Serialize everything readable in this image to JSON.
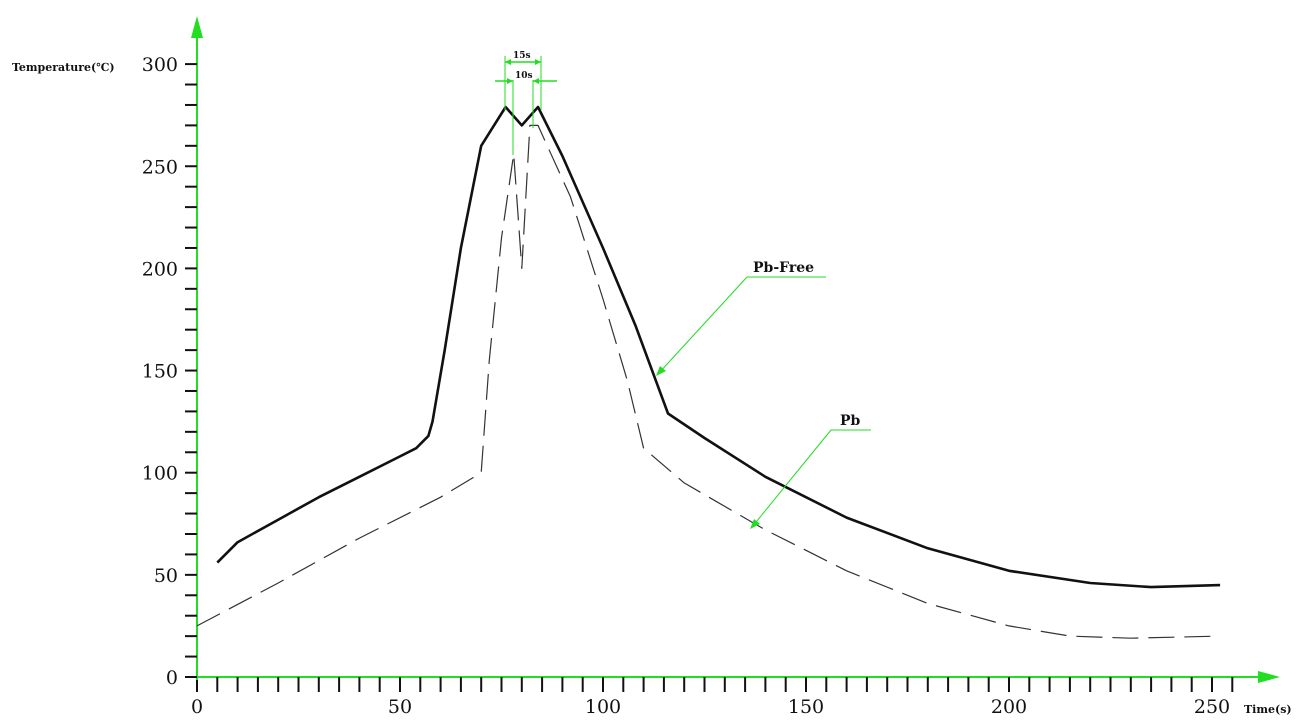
{
  "chart_data": {
    "type": "line",
    "title": "",
    "xlabel": "Time(s)",
    "ylabel": "Temperature(℃)",
    "xlim": [
      0,
      260
    ],
    "ylim": [
      0,
      300
    ],
    "x_ticks": [
      0,
      50,
      100,
      150,
      200,
      250
    ],
    "y_ticks": [
      0,
      50,
      100,
      150,
      200,
      250,
      300
    ],
    "grid": false,
    "axis_color": "#22dd22",
    "series": [
      {
        "name": "Pb-Free",
        "style": "solid",
        "color": "#111111",
        "points": [
          [
            0,
            56
          ],
          [
            10,
            66
          ],
          [
            20,
            77
          ],
          [
            30,
            88
          ],
          [
            40,
            98
          ],
          [
            50,
            108
          ],
          [
            54,
            112
          ],
          [
            57,
            118
          ],
          [
            58,
            125
          ],
          [
            61,
            160
          ],
          [
            65,
            210
          ],
          [
            70,
            260
          ],
          [
            76,
            279
          ],
          [
            80,
            270
          ],
          [
            84,
            279
          ],
          [
            90,
            255
          ],
          [
            100,
            210
          ],
          [
            108,
            172
          ],
          [
            116,
            129
          ],
          [
            125,
            117
          ],
          [
            140,
            98
          ],
          [
            160,
            78
          ],
          [
            180,
            63
          ],
          [
            200,
            52
          ],
          [
            220,
            46
          ],
          [
            235,
            44
          ],
          [
            252,
            45
          ]
        ]
      },
      {
        "name": "Pb",
        "style": "dashed",
        "color": "#333333",
        "points": [
          [
            0,
            25
          ],
          [
            20,
            46
          ],
          [
            40,
            68
          ],
          [
            60,
            88
          ],
          [
            70,
            100
          ],
          [
            72,
            155
          ],
          [
            75,
            215
          ],
          [
            78,
            256
          ],
          [
            80,
            200
          ],
          [
            82,
            270
          ],
          [
            84,
            270
          ],
          [
            92,
            235
          ],
          [
            100,
            185
          ],
          [
            106,
            145
          ],
          [
            110,
            112
          ],
          [
            120,
            95
          ],
          [
            140,
            72
          ],
          [
            160,
            52
          ],
          [
            180,
            36
          ],
          [
            200,
            25
          ],
          [
            215,
            20
          ],
          [
            230,
            19
          ],
          [
            252,
            20
          ]
        ]
      }
    ],
    "annotations": {
      "pbfree_label": "Pb-Free",
      "pb_label": "Pb",
      "dim_outer": "15s",
      "dim_inner": "10s"
    }
  }
}
